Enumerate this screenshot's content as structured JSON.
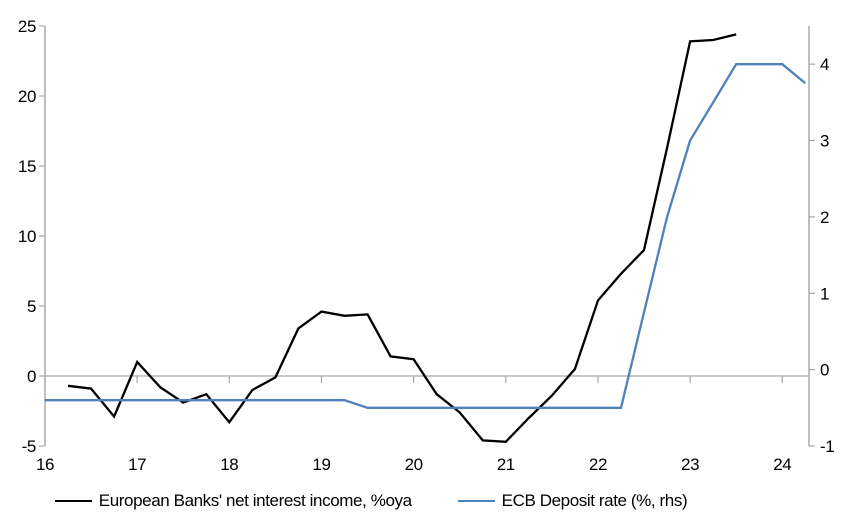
{
  "chart_data": {
    "type": "line",
    "title": "",
    "background": "#ffffff",
    "axis_color": "#a6a6a6",
    "grid": "zero-line-only",
    "legend_position": "bottom",
    "x_axis": {
      "ticks": [
        16,
        17,
        18,
        19,
        20,
        21,
        22,
        23,
        24
      ],
      "range": [
        16,
        24.29
      ]
    },
    "left_axis": {
      "ticks": [
        25,
        20,
        15,
        10,
        5,
        0,
        -5
      ],
      "range": [
        -5,
        25
      ]
    },
    "right_axis": {
      "ticks": [
        4,
        3,
        2,
        1,
        0,
        -1
      ],
      "range": [
        -1,
        4.5
      ]
    },
    "series": [
      {
        "name": "European Banks' net interest income, %oya",
        "axis": "left",
        "color": "#000000",
        "width": 2.3,
        "x": [
          16.25,
          16.5,
          16.75,
          17,
          17.25,
          17.5,
          17.75,
          18,
          18.25,
          18.5,
          18.75,
          19,
          19.25,
          19.5,
          19.75,
          20,
          20.25,
          20.5,
          20.75,
          21,
          21.25,
          21.5,
          21.75,
          22,
          22.25,
          22.5,
          22.75,
          23,
          23.25,
          23.5
        ],
        "values": [
          -0.7,
          -0.9,
          -2.9,
          1.0,
          -0.8,
          -1.9,
          -1.3,
          -3.3,
          -1.0,
          -0.1,
          3.4,
          4.6,
          4.3,
          4.4,
          1.4,
          1.2,
          -1.3,
          -2.6,
          -4.6,
          -4.7,
          -3.0,
          -1.4,
          0.5,
          5.4,
          7.3,
          9.0,
          16.3,
          23.9,
          24.0,
          24.4
        ]
      },
      {
        "name": "ECB Deposit rate (%, rhs)",
        "axis": "right",
        "color": "#4f81bd",
        "width": 2.3,
        "x": [
          16,
          16.25,
          16.5,
          16.75,
          17,
          17.25,
          17.5,
          17.75,
          18,
          18.25,
          18.5,
          18.75,
          19,
          19.25,
          19.5,
          19.75,
          20,
          20.25,
          20.5,
          20.75,
          21,
          21.25,
          21.5,
          21.75,
          22,
          22.25,
          22.5,
          22.75,
          23,
          23.25,
          23.5,
          23.75,
          24,
          24.25
        ],
        "values": [
          -0.4,
          -0.4,
          -0.4,
          -0.4,
          -0.4,
          -0.4,
          -0.4,
          -0.4,
          -0.4,
          -0.4,
          -0.4,
          -0.4,
          -0.4,
          -0.4,
          -0.5,
          -0.5,
          -0.5,
          -0.5,
          -0.5,
          -0.5,
          -0.5,
          -0.5,
          -0.5,
          -0.5,
          -0.5,
          -0.5,
          0.75,
          2.0,
          3.0,
          3.5,
          4.0,
          4.0,
          4.0,
          3.75
        ]
      }
    ]
  },
  "legend": {
    "items": [
      {
        "label": "European Banks' net interest income, %oya"
      },
      {
        "label": "ECB Deposit rate (%, rhs)"
      }
    ]
  }
}
